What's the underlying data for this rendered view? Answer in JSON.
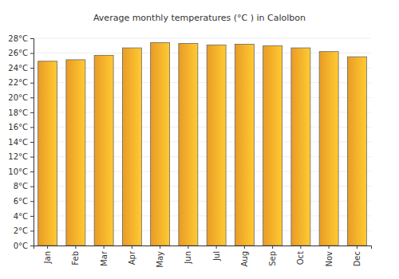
{
  "chart_data": {
    "type": "bar",
    "title": "Average monthly temperatures (°C ) in Calolbon",
    "categories": [
      "Jan",
      "Feb",
      "Mar",
      "Apr",
      "May",
      "Jun",
      "Jul",
      "Aug",
      "Sep",
      "Oct",
      "Nov",
      "Dec"
    ],
    "values": [
      24.9,
      25.1,
      25.7,
      26.7,
      27.4,
      27.3,
      27.1,
      27.2,
      27.0,
      26.7,
      26.2,
      25.5
    ],
    "color": "#ffaa2a",
    "ylim": [
      0,
      28
    ],
    "yticks": [
      {
        "value": 0,
        "label": "0°C"
      },
      {
        "value": 2,
        "label": "2°C"
      },
      {
        "value": 4,
        "label": "4°C"
      },
      {
        "value": 6,
        "label": "6°C"
      },
      {
        "value": 8,
        "label": "8°C"
      },
      {
        "value": 10,
        "label": "10°C"
      },
      {
        "value": 12,
        "label": "12°C"
      },
      {
        "value": 14,
        "label": "14°C"
      },
      {
        "value": 16,
        "label": "16°C"
      },
      {
        "value": 18,
        "label": "18°C"
      },
      {
        "value": 20,
        "label": "20°C"
      },
      {
        "value": 22,
        "label": "22°C"
      },
      {
        "value": 24,
        "label": "24°C"
      },
      {
        "value": 26,
        "label": "26°C"
      },
      {
        "value": 28,
        "label": "28°C"
      }
    ],
    "grid": true
  }
}
